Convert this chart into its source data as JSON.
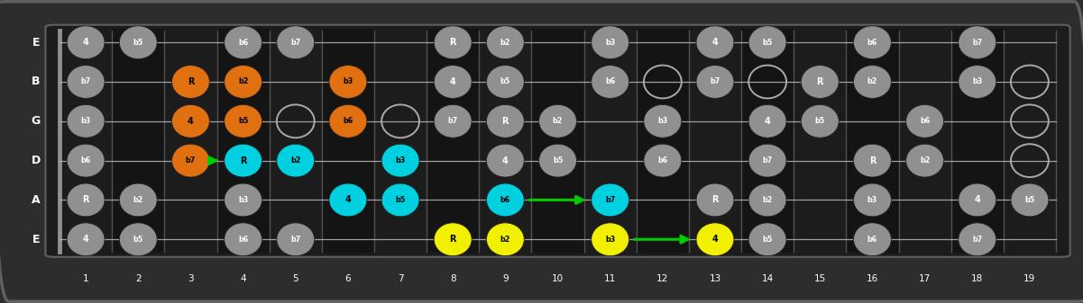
{
  "bg_color": "#2d2d2d",
  "fretboard_bg": "#1c1c1c",
  "string_color": "#b0b0b0",
  "fret_color": "#505050",
  "nut_color": "#909090",
  "strings": [
    "E",
    "B",
    "G",
    "D",
    "A",
    "E"
  ],
  "num_frets": 19,
  "color_map": {
    "gray": "#909090",
    "orange": "#e07010",
    "cyan": "#00d0e0",
    "yellow": "#f0f000"
  },
  "text_color_map": {
    "gray": "white",
    "orange": "black",
    "cyan": "black",
    "yellow": "black"
  },
  "notes": [
    {
      "string": 5,
      "fret": 1,
      "label": "4",
      "color": "gray"
    },
    {
      "string": 5,
      "fret": 2,
      "label": "b5",
      "color": "gray"
    },
    {
      "string": 5,
      "fret": 4,
      "label": "b6",
      "color": "gray"
    },
    {
      "string": 5,
      "fret": 5,
      "label": "b7",
      "color": "gray"
    },
    {
      "string": 5,
      "fret": 8,
      "label": "R",
      "color": "yellow"
    },
    {
      "string": 5,
      "fret": 9,
      "label": "b2",
      "color": "yellow"
    },
    {
      "string": 5,
      "fret": 11,
      "label": "b3",
      "color": "yellow"
    },
    {
      "string": 5,
      "fret": 13,
      "label": "4",
      "color": "yellow"
    },
    {
      "string": 5,
      "fret": 14,
      "label": "b5",
      "color": "gray"
    },
    {
      "string": 5,
      "fret": 16,
      "label": "b6",
      "color": "gray"
    },
    {
      "string": 5,
      "fret": 18,
      "label": "b7",
      "color": "gray"
    },
    {
      "string": 4,
      "fret": 1,
      "label": "R",
      "color": "gray"
    },
    {
      "string": 4,
      "fret": 2,
      "label": "b2",
      "color": "gray"
    },
    {
      "string": 4,
      "fret": 4,
      "label": "b3",
      "color": "gray"
    },
    {
      "string": 4,
      "fret": 6,
      "label": "4",
      "color": "cyan"
    },
    {
      "string": 4,
      "fret": 7,
      "label": "b5",
      "color": "cyan"
    },
    {
      "string": 4,
      "fret": 9,
      "label": "b6",
      "color": "cyan"
    },
    {
      "string": 4,
      "fret": 11,
      "label": "b7",
      "color": "cyan"
    },
    {
      "string": 4,
      "fret": 13,
      "label": "R",
      "color": "gray"
    },
    {
      "string": 4,
      "fret": 14,
      "label": "b2",
      "color": "gray"
    },
    {
      "string": 4,
      "fret": 16,
      "label": "b3",
      "color": "gray"
    },
    {
      "string": 4,
      "fret": 18,
      "label": "4",
      "color": "gray"
    },
    {
      "string": 4,
      "fret": 19,
      "label": "b5",
      "color": "gray"
    },
    {
      "string": 3,
      "fret": 1,
      "label": "b6",
      "color": "gray"
    },
    {
      "string": 3,
      "fret": 3,
      "label": "b7",
      "color": "orange"
    },
    {
      "string": 3,
      "fret": 4,
      "label": "R",
      "color": "cyan"
    },
    {
      "string": 3,
      "fret": 5,
      "label": "b2",
      "color": "cyan"
    },
    {
      "string": 3,
      "fret": 7,
      "label": "b3",
      "color": "cyan"
    },
    {
      "string": 3,
      "fret": 9,
      "label": "4",
      "color": "gray"
    },
    {
      "string": 3,
      "fret": 10,
      "label": "b5",
      "color": "gray"
    },
    {
      "string": 3,
      "fret": 12,
      "label": "b6",
      "color": "gray"
    },
    {
      "string": 3,
      "fret": 14,
      "label": "b7",
      "color": "gray"
    },
    {
      "string": 3,
      "fret": 16,
      "label": "R",
      "color": "gray"
    },
    {
      "string": 3,
      "fret": 17,
      "label": "b2",
      "color": "gray"
    },
    {
      "string": 2,
      "fret": 1,
      "label": "b3",
      "color": "gray"
    },
    {
      "string": 2,
      "fret": 3,
      "label": "4",
      "color": "orange"
    },
    {
      "string": 2,
      "fret": 4,
      "label": "b5",
      "color": "orange"
    },
    {
      "string": 2,
      "fret": 6,
      "label": "b6",
      "color": "orange"
    },
    {
      "string": 2,
      "fret": 8,
      "label": "b7",
      "color": "gray"
    },
    {
      "string": 2,
      "fret": 9,
      "label": "R",
      "color": "gray"
    },
    {
      "string": 2,
      "fret": 10,
      "label": "b2",
      "color": "gray"
    },
    {
      "string": 2,
      "fret": 12,
      "label": "b3",
      "color": "gray"
    },
    {
      "string": 2,
      "fret": 14,
      "label": "4",
      "color": "gray"
    },
    {
      "string": 2,
      "fret": 15,
      "label": "b5",
      "color": "gray"
    },
    {
      "string": 2,
      "fret": 17,
      "label": "b6",
      "color": "gray"
    },
    {
      "string": 1,
      "fret": 1,
      "label": "b7",
      "color": "gray"
    },
    {
      "string": 1,
      "fret": 3,
      "label": "R",
      "color": "orange"
    },
    {
      "string": 1,
      "fret": 4,
      "label": "b2",
      "color": "orange"
    },
    {
      "string": 1,
      "fret": 6,
      "label": "b3",
      "color": "orange"
    },
    {
      "string": 1,
      "fret": 8,
      "label": "4",
      "color": "gray"
    },
    {
      "string": 1,
      "fret": 9,
      "label": "b5",
      "color": "gray"
    },
    {
      "string": 1,
      "fret": 11,
      "label": "b6",
      "color": "gray"
    },
    {
      "string": 1,
      "fret": 13,
      "label": "b7",
      "color": "gray"
    },
    {
      "string": 1,
      "fret": 15,
      "label": "R",
      "color": "gray"
    },
    {
      "string": 1,
      "fret": 16,
      "label": "b2",
      "color": "gray"
    },
    {
      "string": 1,
      "fret": 18,
      "label": "b3",
      "color": "gray"
    },
    {
      "string": 0,
      "fret": 1,
      "label": "4",
      "color": "gray"
    },
    {
      "string": 0,
      "fret": 2,
      "label": "b5",
      "color": "gray"
    },
    {
      "string": 0,
      "fret": 4,
      "label": "b6",
      "color": "gray"
    },
    {
      "string": 0,
      "fret": 5,
      "label": "b7",
      "color": "gray"
    },
    {
      "string": 0,
      "fret": 8,
      "label": "R",
      "color": "gray"
    },
    {
      "string": 0,
      "fret": 9,
      "label": "b2",
      "color": "gray"
    },
    {
      "string": 0,
      "fret": 11,
      "label": "b3",
      "color": "gray"
    },
    {
      "string": 0,
      "fret": 13,
      "label": "4",
      "color": "gray"
    },
    {
      "string": 0,
      "fret": 14,
      "label": "b5",
      "color": "gray"
    },
    {
      "string": 0,
      "fret": 16,
      "label": "b6",
      "color": "gray"
    },
    {
      "string": 0,
      "fret": 18,
      "label": "b7",
      "color": "gray"
    }
  ],
  "open_circles": [
    [
      3,
      5
    ],
    [
      3,
      7
    ],
    [
      3,
      12
    ],
    [
      3,
      14
    ],
    [
      3,
      17
    ],
    [
      3,
      19
    ],
    [
      2,
      5
    ],
    [
      2,
      7
    ],
    [
      2,
      12
    ],
    [
      2,
      14
    ],
    [
      2,
      19
    ],
    [
      1,
      12
    ],
    [
      1,
      14
    ],
    [
      1,
      16
    ],
    [
      1,
      19
    ]
  ],
  "arrows": [
    {
      "string": 3,
      "fret_from": 3,
      "fret_to": 4,
      "color": "#00cc00"
    },
    {
      "string": 4,
      "fret_from": 9,
      "fret_to": 11,
      "color": "#00cc00"
    },
    {
      "string": 5,
      "fret_from": 11,
      "fret_to": 13,
      "color": "#00cc00"
    }
  ]
}
